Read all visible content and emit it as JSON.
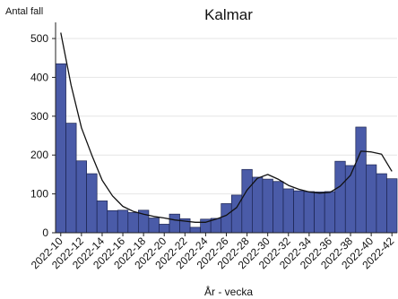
{
  "chart_data": {
    "type": "bar",
    "title": "Kalmar",
    "ylabel": "Antal fall",
    "xlabel": "År - vecka",
    "ylim": [
      0,
      530
    ],
    "yticks": [
      0,
      100,
      200,
      300,
      400,
      500
    ],
    "grid": true,
    "legend": "none",
    "colors": {
      "bar": "#4a5ba8",
      "bar_edge": "#1b2350",
      "line": "#111111",
      "grid": "#e6e6e6"
    },
    "categories": [
      "2022-10",
      "2022-11",
      "2022-12",
      "2022-13",
      "2022-14",
      "2022-15",
      "2022-16",
      "2022-17",
      "2022-18",
      "2022-19",
      "2022-20",
      "2022-21",
      "2022-22",
      "2022-23",
      "2022-24",
      "2022-25",
      "2022-26",
      "2022-27",
      "2022-28",
      "2022-29",
      "2022-30",
      "2022-31",
      "2022-32",
      "2022-33",
      "2022-34",
      "2022-35",
      "2022-36",
      "2022-37",
      "2022-38",
      "2022-39",
      "2022-40",
      "2022-41",
      "2022-42"
    ],
    "x_tick_labels": [
      "2022-10",
      "2022-12",
      "2022-14",
      "2022-16",
      "2022-18",
      "2022-20",
      "2022-22",
      "2022-24",
      "2022-26",
      "2022-28",
      "2022-30",
      "2022-32",
      "2022-34",
      "2022-36",
      "2022-38",
      "2022-40",
      "2022-42"
    ],
    "series": [
      {
        "values": [
          435,
          282,
          185,
          152,
          82,
          57,
          58,
          52,
          58,
          38,
          22,
          48,
          36,
          14,
          35,
          37,
          75,
          97,
          163,
          143,
          138,
          132,
          113,
          108,
          106,
          105,
          106,
          184,
          173,
          272,
          175,
          152,
          139
        ]
      },
      {
        "values": [
          515,
          380,
          270,
          200,
          135,
          95,
          68,
          55,
          48,
          42,
          38,
          33,
          30,
          27,
          27,
          35,
          45,
          65,
          110,
          140,
          150,
          138,
          122,
          112,
          105,
          102,
          104,
          120,
          148,
          210,
          208,
          202,
          158
        ]
      }
    ]
  }
}
